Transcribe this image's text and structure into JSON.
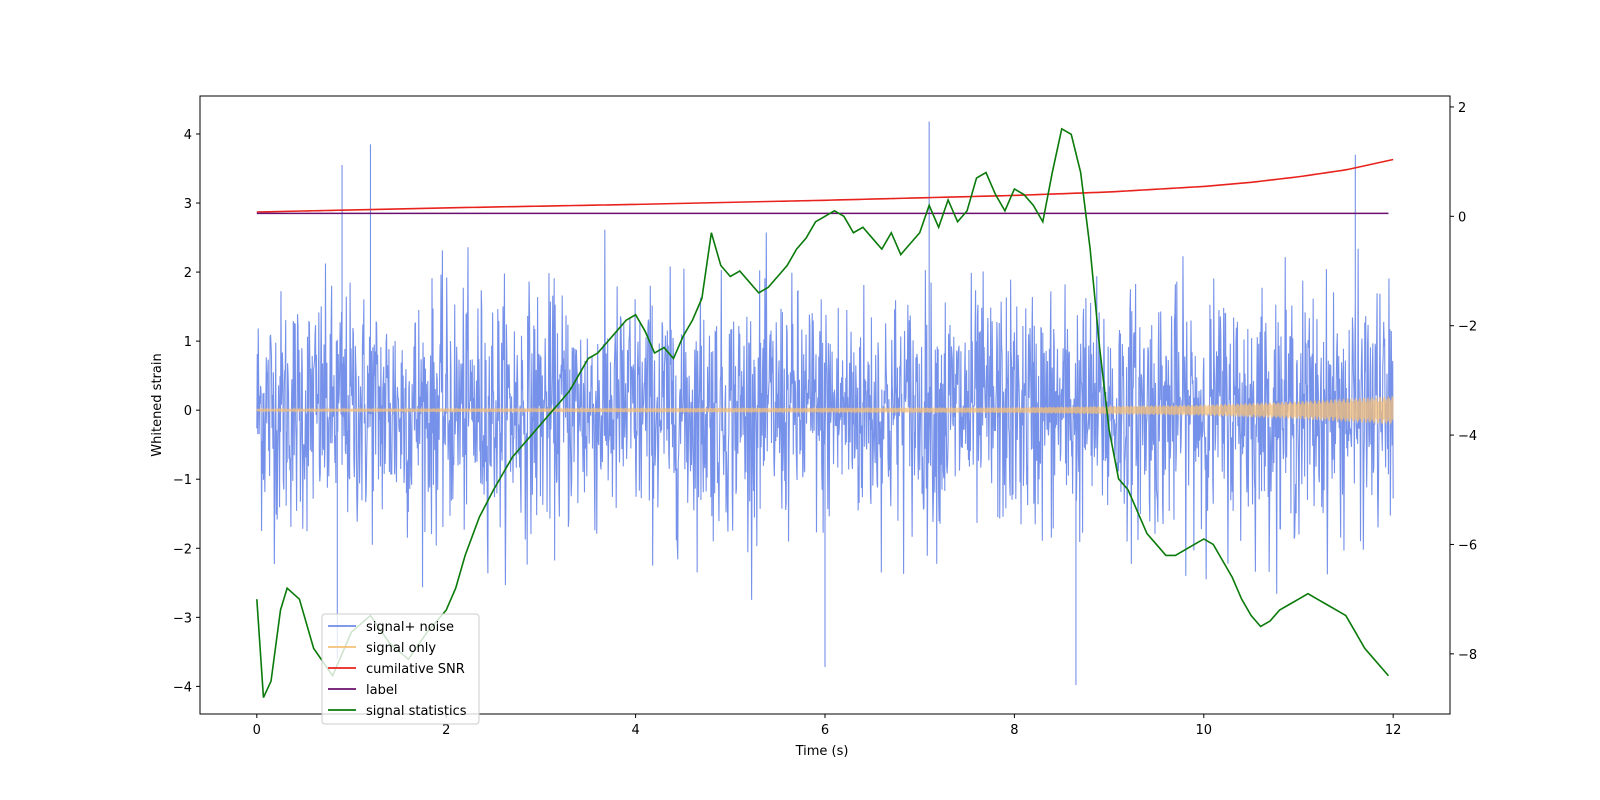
{
  "chart_data": {
    "type": "line",
    "xlabel": "Time (s)",
    "ylabel": "Whitened strain",
    "xlim": [
      -0.6,
      12.6
    ],
    "ylim": [
      -4.4,
      4.55
    ],
    "y2lim": [
      -9.1,
      2.2
    ],
    "xticks": [
      0,
      2,
      4,
      6,
      8,
      10,
      12
    ],
    "yticks": [
      -4,
      -3,
      -2,
      -1,
      0,
      1,
      2,
      3,
      4
    ],
    "y2ticks": [
      -8,
      -6,
      -4,
      -2,
      0,
      2
    ],
    "legend_position": "lower-left",
    "grid": false,
    "series": [
      {
        "name": "signal+ noise",
        "color": "#6f8be8",
        "axis": "left",
        "kind": "noisy band",
        "x_range": [
          0,
          12
        ],
        "envelope_typical": [
          -2.0,
          2.2
        ],
        "peaks": [
          {
            "x": 0.9,
            "y": 3.55
          },
          {
            "x": 1.2,
            "y": 3.85
          },
          {
            "x": 7.1,
            "y": 4.18
          },
          {
            "x": 11.6,
            "y": 3.7
          },
          {
            "x": 8.65,
            "y": -3.98
          },
          {
            "x": 6.0,
            "y": -3.72
          },
          {
            "x": 0.85,
            "y": -3.6
          }
        ]
      },
      {
        "name": "signal only",
        "color": "#f5c07a",
        "axis": "left",
        "kind": "growing oscillation",
        "x": [
          0,
          8,
          10,
          11,
          12
        ],
        "amplitude": [
          0.02,
          0.04,
          0.08,
          0.13,
          0.21
        ]
      },
      {
        "name": "cumilative SNR",
        "color": "#e8231d",
        "axis": "left",
        "x": [
          0,
          2,
          4,
          6,
          8,
          9,
          10,
          10.5,
          11,
          11.5,
          12
        ],
        "y": [
          2.87,
          2.93,
          2.98,
          3.04,
          3.11,
          3.16,
          3.24,
          3.3,
          3.38,
          3.48,
          3.63
        ]
      },
      {
        "name": "label",
        "color": "#6a0f6e",
        "axis": "left",
        "x": [
          0,
          11.95
        ],
        "y": [
          2.85,
          2.85
        ]
      },
      {
        "name": "signal statistics",
        "color": "#0a7a0a",
        "axis": "right",
        "x": [
          0.0,
          0.07,
          0.15,
          0.25,
          0.32,
          0.45,
          0.6,
          0.8,
          1.0,
          1.2,
          1.4,
          1.6,
          1.8,
          2.0,
          2.1,
          2.2,
          2.35,
          2.5,
          2.6,
          2.7,
          2.8,
          2.9,
          3.0,
          3.1,
          3.2,
          3.3,
          3.4,
          3.5,
          3.6,
          3.7,
          3.8,
          3.9,
          4.0,
          4.1,
          4.2,
          4.3,
          4.4,
          4.5,
          4.6,
          4.7,
          4.8,
          4.9,
          5.0,
          5.1,
          5.2,
          5.3,
          5.4,
          5.5,
          5.6,
          5.7,
          5.8,
          5.9,
          6.0,
          6.1,
          6.2,
          6.3,
          6.4,
          6.5,
          6.6,
          6.7,
          6.8,
          6.9,
          7.0,
          7.1,
          7.2,
          7.3,
          7.4,
          7.5,
          7.6,
          7.7,
          7.8,
          7.9,
          8.0,
          8.1,
          8.2,
          8.3,
          8.4,
          8.5,
          8.6,
          8.7,
          8.8,
          8.9,
          9.0,
          9.1,
          9.2,
          9.3,
          9.4,
          9.5,
          9.6,
          9.7,
          9.8,
          9.9,
          10.0,
          10.1,
          10.2,
          10.3,
          10.4,
          10.5,
          10.6,
          10.7,
          10.8,
          10.9,
          11.0,
          11.1,
          11.2,
          11.3,
          11.4,
          11.5,
          11.6,
          11.7,
          11.8,
          11.9,
          11.95
        ],
        "y": [
          -7.0,
          -8.8,
          -8.5,
          -7.2,
          -6.8,
          -7.0,
          -7.9,
          -8.4,
          -7.6,
          -7.3,
          -7.8,
          -8.1,
          -7.6,
          -7.2,
          -6.8,
          -6.2,
          -5.5,
          -5.0,
          -4.7,
          -4.4,
          -4.2,
          -4.0,
          -3.8,
          -3.6,
          -3.4,
          -3.2,
          -2.9,
          -2.6,
          -2.5,
          -2.3,
          -2.1,
          -1.9,
          -1.8,
          -2.1,
          -2.5,
          -2.4,
          -2.6,
          -2.2,
          -1.9,
          -1.5,
          -0.3,
          -0.9,
          -1.1,
          -1.0,
          -1.2,
          -1.4,
          -1.3,
          -1.1,
          -0.9,
          -0.6,
          -0.4,
          -0.1,
          0.0,
          0.1,
          0.0,
          -0.3,
          -0.2,
          -0.4,
          -0.6,
          -0.3,
          -0.7,
          -0.5,
          -0.3,
          0.2,
          -0.2,
          0.3,
          -0.1,
          0.1,
          0.7,
          0.8,
          0.4,
          0.1,
          0.5,
          0.4,
          0.2,
          -0.1,
          0.8,
          1.6,
          1.5,
          0.8,
          -0.6,
          -2.4,
          -3.9,
          -4.8,
          -5.0,
          -5.4,
          -5.8,
          -6.0,
          -6.2,
          -6.2,
          -6.1,
          -6.0,
          -5.9,
          -6.0,
          -6.3,
          -6.6,
          -7.0,
          -7.3,
          -7.5,
          -7.4,
          -7.2,
          -7.1,
          -7.0,
          -6.9,
          -7.0,
          -7.1,
          -7.2,
          -7.3,
          -7.6,
          -7.9,
          -8.1,
          -8.3,
          -8.4
        ]
      }
    ]
  }
}
